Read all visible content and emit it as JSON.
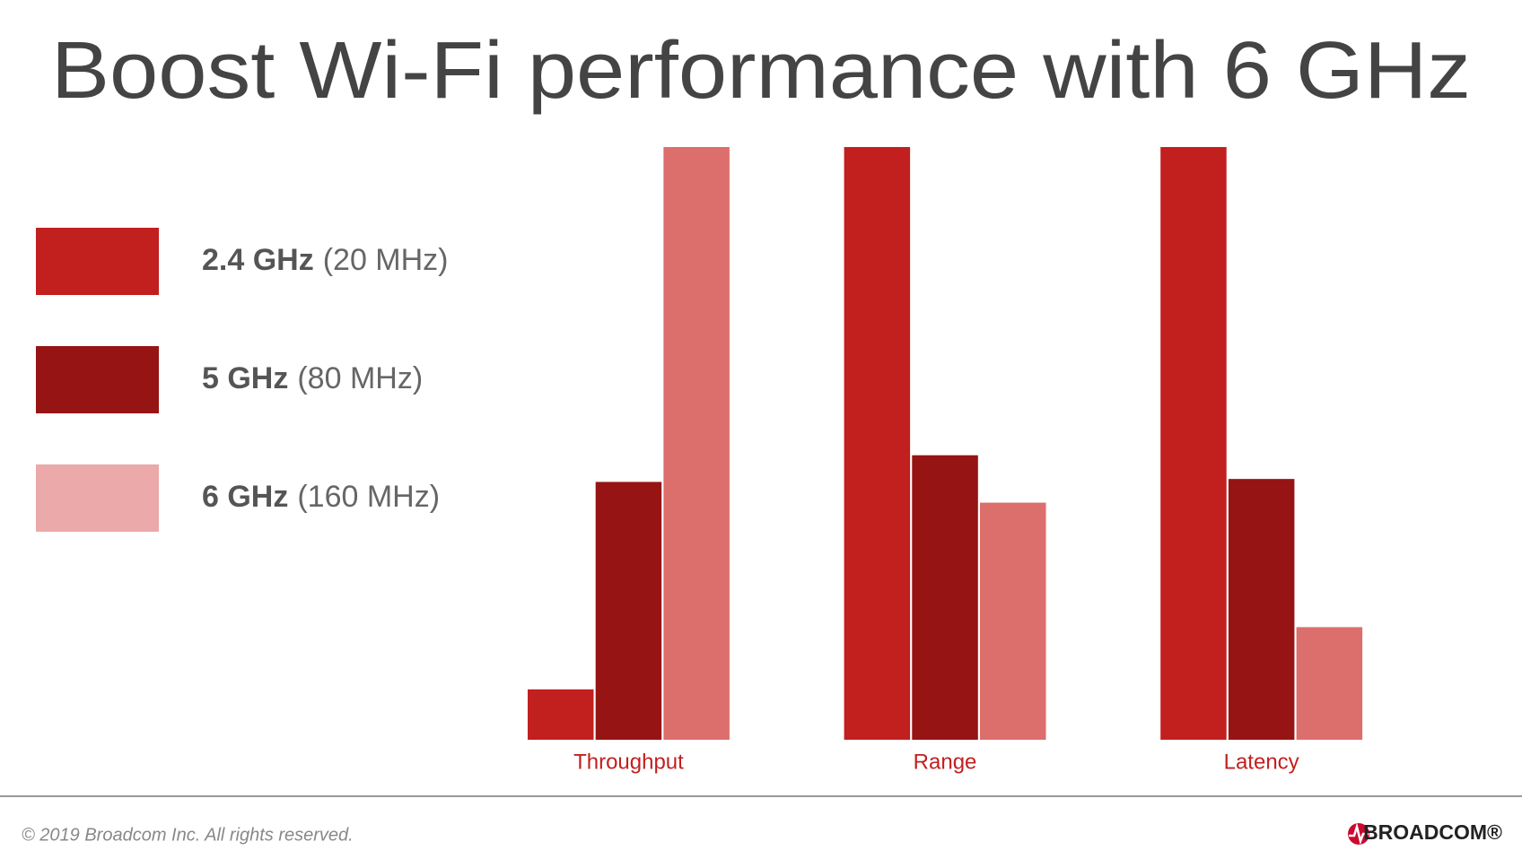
{
  "chart_data": {
    "type": "bar",
    "title": "Boost Wi-Fi performance with 6 GHz",
    "categories": [
      "Throughput",
      "Range",
      "Latency"
    ],
    "series": [
      {
        "name": "2.4 GHz",
        "bandwidth": "(20 MHz)",
        "color": "#c21f1f",
        "legend_color": "#c21f1f",
        "values": [
          8.5,
          100,
          100
        ]
      },
      {
        "name": "5 GHz",
        "bandwidth": "(80 MHz)",
        "color": "#961414",
        "legend_color": "#961414",
        "values": [
          43.5,
          48,
          44
        ]
      },
      {
        "name": "6 GHz",
        "bandwidth": "(160 MHz)",
        "color": "#dc6e6c",
        "legend_color": "#eba9a9",
        "values": [
          100,
          40,
          19
        ]
      }
    ],
    "ylim": [
      0,
      100
    ],
    "grid": false
  },
  "footer": {
    "copyright": "© 2019 Broadcom Inc.  All rights reserved.",
    "logo": "BROADCOM®"
  }
}
